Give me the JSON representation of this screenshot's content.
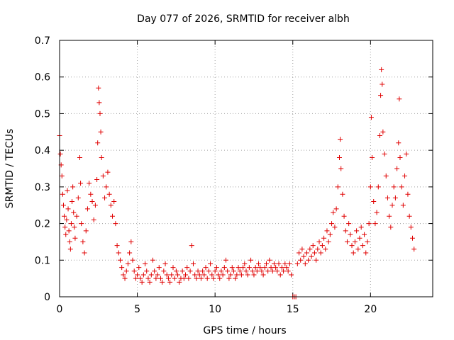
{
  "chart_data": {
    "type": "scatter",
    "title": "Day 077 of 2026, SRMTID for receiver albh",
    "xlabel": "GPS time / hours",
    "ylabel": "SRMTID / TECUs",
    "xlim": [
      0,
      24
    ],
    "ylim": [
      0,
      0.7
    ],
    "xticks": [
      0,
      5,
      10,
      15,
      20
    ],
    "xtick_labels": [
      "0",
      "5",
      "10",
      "15",
      "20"
    ],
    "yticks": [
      0,
      0.1,
      0.2,
      0.3,
      0.4,
      0.5,
      0.6,
      0.7
    ],
    "ytick_labels": [
      "0",
      "0.1",
      "0.2",
      "0.3",
      "0.4",
      "0.5",
      "0.6",
      "0.7"
    ],
    "grid": true,
    "marker": "+",
    "marker_color": "#e00000",
    "series": [
      {
        "name": "SRMTID",
        "points": [
          [
            0.0,
            0.44
          ],
          [
            0.05,
            0.39
          ],
          [
            0.1,
            0.36
          ],
          [
            0.15,
            0.33
          ],
          [
            0.2,
            0.28
          ],
          [
            0.25,
            0.25
          ],
          [
            0.3,
            0.22
          ],
          [
            0.35,
            0.19
          ],
          [
            0.4,
            0.17
          ],
          [
            0.45,
            0.21
          ],
          [
            0.5,
            0.29
          ],
          [
            0.55,
            0.24
          ],
          [
            0.6,
            0.18
          ],
          [
            0.65,
            0.15
          ],
          [
            0.7,
            0.13
          ],
          [
            0.75,
            0.2
          ],
          [
            0.8,
            0.26
          ],
          [
            0.85,
            0.3
          ],
          [
            0.9,
            0.23
          ],
          [
            0.95,
            0.19
          ],
          [
            1.0,
            0.16
          ],
          [
            1.1,
            0.22
          ],
          [
            1.2,
            0.27
          ],
          [
            1.3,
            0.38
          ],
          [
            1.35,
            0.31
          ],
          [
            1.4,
            0.2
          ],
          [
            1.5,
            0.15
          ],
          [
            1.6,
            0.12
          ],
          [
            1.7,
            0.18
          ],
          [
            1.8,
            0.24
          ],
          [
            1.9,
            0.31
          ],
          [
            2.0,
            0.28
          ],
          [
            2.1,
            0.26
          ],
          [
            2.2,
            0.21
          ],
          [
            2.3,
            0.25
          ],
          [
            2.4,
            0.32
          ],
          [
            2.45,
            0.42
          ],
          [
            2.5,
            0.57
          ],
          [
            2.55,
            0.53
          ],
          [
            2.6,
            0.5
          ],
          [
            2.65,
            0.45
          ],
          [
            2.7,
            0.38
          ],
          [
            2.8,
            0.33
          ],
          [
            2.9,
            0.27
          ],
          [
            3.0,
            0.3
          ],
          [
            3.1,
            0.34
          ],
          [
            3.2,
            0.28
          ],
          [
            3.3,
            0.25
          ],
          [
            3.4,
            0.22
          ],
          [
            3.5,
            0.26
          ],
          [
            3.6,
            0.2
          ],
          [
            3.7,
            0.14
          ],
          [
            3.8,
            0.12
          ],
          [
            3.9,
            0.1
          ],
          [
            4.0,
            0.08
          ],
          [
            4.1,
            0.06
          ],
          [
            4.2,
            0.05
          ],
          [
            4.3,
            0.07
          ],
          [
            4.4,
            0.09
          ],
          [
            4.5,
            0.12
          ],
          [
            4.6,
            0.15
          ],
          [
            4.7,
            0.1
          ],
          [
            4.8,
            0.07
          ],
          [
            4.9,
            0.05
          ],
          [
            5.0,
            0.06
          ],
          [
            5.1,
            0.08
          ],
          [
            5.2,
            0.05
          ],
          [
            5.3,
            0.04
          ],
          [
            5.4,
            0.06
          ],
          [
            5.5,
            0.09
          ],
          [
            5.6,
            0.07
          ],
          [
            5.7,
            0.05
          ],
          [
            5.8,
            0.04
          ],
          [
            5.9,
            0.06
          ],
          [
            6.0,
            0.1
          ],
          [
            6.1,
            0.07
          ],
          [
            6.2,
            0.05
          ],
          [
            6.3,
            0.06
          ],
          [
            6.4,
            0.08
          ],
          [
            6.5,
            0.05
          ],
          [
            6.6,
            0.04
          ],
          [
            6.7,
            0.07
          ],
          [
            6.8,
            0.09
          ],
          [
            6.9,
            0.06
          ],
          [
            7.0,
            0.05
          ],
          [
            7.1,
            0.04
          ],
          [
            7.2,
            0.06
          ],
          [
            7.3,
            0.08
          ],
          [
            7.4,
            0.05
          ],
          [
            7.5,
            0.07
          ],
          [
            7.6,
            0.06
          ],
          [
            7.7,
            0.04
          ],
          [
            7.8,
            0.05
          ],
          [
            7.9,
            0.07
          ],
          [
            8.0,
            0.05
          ],
          [
            8.1,
            0.06
          ],
          [
            8.2,
            0.08
          ],
          [
            8.3,
            0.05
          ],
          [
            8.4,
            0.07
          ],
          [
            8.5,
            0.14
          ],
          [
            8.6,
            0.09
          ],
          [
            8.7,
            0.06
          ],
          [
            8.8,
            0.05
          ],
          [
            8.9,
            0.07
          ],
          [
            9.0,
            0.06
          ],
          [
            9.1,
            0.05
          ],
          [
            9.2,
            0.07
          ],
          [
            9.3,
            0.06
          ],
          [
            9.4,
            0.08
          ],
          [
            9.5,
            0.05
          ],
          [
            9.6,
            0.07
          ],
          [
            9.7,
            0.09
          ],
          [
            9.8,
            0.06
          ],
          [
            9.9,
            0.05
          ],
          [
            10.0,
            0.07
          ],
          [
            10.1,
            0.08
          ],
          [
            10.2,
            0.06
          ],
          [
            10.3,
            0.05
          ],
          [
            10.4,
            0.07
          ],
          [
            10.5,
            0.06
          ],
          [
            10.6,
            0.08
          ],
          [
            10.7,
            0.1
          ],
          [
            10.8,
            0.07
          ],
          [
            10.9,
            0.05
          ],
          [
            11.0,
            0.06
          ],
          [
            11.1,
            0.08
          ],
          [
            11.2,
            0.07
          ],
          [
            11.3,
            0.05
          ],
          [
            11.4,
            0.06
          ],
          [
            11.5,
            0.08
          ],
          [
            11.6,
            0.07
          ],
          [
            11.7,
            0.06
          ],
          [
            11.8,
            0.08
          ],
          [
            11.9,
            0.09
          ],
          [
            12.0,
            0.07
          ],
          [
            12.1,
            0.06
          ],
          [
            12.2,
            0.08
          ],
          [
            12.3,
            0.1
          ],
          [
            12.4,
            0.07
          ],
          [
            12.5,
            0.06
          ],
          [
            12.6,
            0.08
          ],
          [
            12.7,
            0.07
          ],
          [
            12.8,
            0.09
          ],
          [
            12.9,
            0.08
          ],
          [
            13.0,
            0.07
          ],
          [
            13.1,
            0.06
          ],
          [
            13.2,
            0.08
          ],
          [
            13.3,
            0.09
          ],
          [
            13.4,
            0.07
          ],
          [
            13.5,
            0.1
          ],
          [
            13.6,
            0.08
          ],
          [
            13.7,
            0.07
          ],
          [
            13.8,
            0.09
          ],
          [
            13.9,
            0.08
          ],
          [
            14.0,
            0.07
          ],
          [
            14.1,
            0.09
          ],
          [
            14.2,
            0.06
          ],
          [
            14.3,
            0.08
          ],
          [
            14.4,
            0.07
          ],
          [
            14.5,
            0.09
          ],
          [
            14.6,
            0.08
          ],
          [
            14.7,
            0.07
          ],
          [
            14.8,
            0.09
          ],
          [
            14.9,
            0.06
          ],
          [
            15.0,
            0.0
          ],
          [
            15.1,
            0.0
          ],
          [
            15.2,
            0.0
          ],
          [
            15.3,
            0.09
          ],
          [
            15.4,
            0.12
          ],
          [
            15.5,
            0.1
          ],
          [
            15.6,
            0.13
          ],
          [
            15.7,
            0.11
          ],
          [
            15.8,
            0.09
          ],
          [
            15.9,
            0.12
          ],
          [
            16.0,
            0.1
          ],
          [
            16.1,
            0.13
          ],
          [
            16.2,
            0.11
          ],
          [
            16.3,
            0.14
          ],
          [
            16.4,
            0.12
          ],
          [
            16.5,
            0.1
          ],
          [
            16.6,
            0.13
          ],
          [
            16.7,
            0.15
          ],
          [
            16.8,
            0.12
          ],
          [
            16.9,
            0.14
          ],
          [
            17.0,
            0.16
          ],
          [
            17.1,
            0.13
          ],
          [
            17.2,
            0.18
          ],
          [
            17.3,
            0.15
          ],
          [
            17.4,
            0.17
          ],
          [
            17.5,
            0.2
          ],
          [
            17.6,
            0.23
          ],
          [
            17.7,
            0.19
          ],
          [
            17.8,
            0.24
          ],
          [
            17.9,
            0.3
          ],
          [
            18.0,
            0.38
          ],
          [
            18.05,
            0.43
          ],
          [
            18.1,
            0.35
          ],
          [
            18.2,
            0.28
          ],
          [
            18.3,
            0.22
          ],
          [
            18.4,
            0.18
          ],
          [
            18.5,
            0.15
          ],
          [
            18.6,
            0.2
          ],
          [
            18.7,
            0.17
          ],
          [
            18.8,
            0.14
          ],
          [
            18.9,
            0.12
          ],
          [
            19.0,
            0.15
          ],
          [
            19.1,
            0.18
          ],
          [
            19.2,
            0.13
          ],
          [
            19.3,
            0.16
          ],
          [
            19.4,
            0.19
          ],
          [
            19.5,
            0.14
          ],
          [
            19.6,
            0.17
          ],
          [
            19.7,
            0.12
          ],
          [
            19.8,
            0.15
          ],
          [
            19.9,
            0.2
          ],
          [
            20.0,
            0.3
          ],
          [
            20.05,
            0.49
          ],
          [
            20.1,
            0.38
          ],
          [
            20.2,
            0.26
          ],
          [
            20.3,
            0.2
          ],
          [
            20.4,
            0.23
          ],
          [
            20.5,
            0.3
          ],
          [
            20.6,
            0.44
          ],
          [
            20.65,
            0.55
          ],
          [
            20.7,
            0.62
          ],
          [
            20.75,
            0.58
          ],
          [
            20.8,
            0.45
          ],
          [
            20.9,
            0.39
          ],
          [
            21.0,
            0.33
          ],
          [
            21.1,
            0.27
          ],
          [
            21.2,
            0.22
          ],
          [
            21.3,
            0.19
          ],
          [
            21.4,
            0.25
          ],
          [
            21.5,
            0.3
          ],
          [
            21.6,
            0.27
          ],
          [
            21.7,
            0.35
          ],
          [
            21.8,
            0.42
          ],
          [
            21.85,
            0.54
          ],
          [
            21.9,
            0.38
          ],
          [
            22.0,
            0.3
          ],
          [
            22.1,
            0.25
          ],
          [
            22.2,
            0.33
          ],
          [
            22.3,
            0.39
          ],
          [
            22.4,
            0.28
          ],
          [
            22.5,
            0.22
          ],
          [
            22.6,
            0.19
          ],
          [
            22.7,
            0.16
          ],
          [
            22.8,
            0.13
          ]
        ]
      }
    ]
  }
}
